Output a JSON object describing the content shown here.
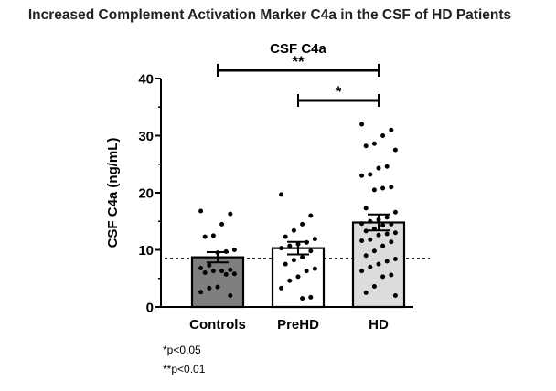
{
  "page_title": "Increased Complement Activation Marker C4a in the CSF of HD Patients",
  "footnotes": [
    "*p<0.05",
    "**p<0.01"
  ],
  "chart_data": {
    "type": "bar",
    "title": "CSF C4a",
    "xlabel": "",
    "ylabel": "CSF C4a (ng/mL)",
    "ylim": [
      0,
      40
    ],
    "yticks": [
      0,
      10,
      20,
      30,
      40
    ],
    "categories": [
      "Controls",
      "PreHD",
      "HD"
    ],
    "values": [
      8.7,
      10.3,
      14.8
    ],
    "error_sem": [
      0.9,
      1.1,
      1.4
    ],
    "bar_colors": [
      "#7f7f7f",
      "#ffffff",
      "#dcdcdc"
    ],
    "reference_line": 8.5,
    "points": [
      [
        16.8,
        16.3,
        14.5,
        12.5,
        12.3,
        10.0,
        9.7,
        9.5,
        7.3,
        6.8,
        6.5,
        6.3,
        6.3,
        6.0,
        5.8,
        5.7,
        3.5,
        3.3,
        2.6,
        2.0
      ],
      [
        19.7,
        16.0,
        14.5,
        13.4,
        12.3,
        11.9,
        11.3,
        11.0,
        10.7,
        10.3,
        9.8,
        8.7,
        8.2,
        7.5,
        6.7,
        6.3,
        5.3,
        4.6,
        3.3,
        1.7,
        1.5
      ],
      [
        32.0,
        31.0,
        30.0,
        28.6,
        28.2,
        27.5,
        24.6,
        24.3,
        23.2,
        23.0,
        21.0,
        20.8,
        20.5,
        17.3,
        16.6,
        15.7,
        15.3,
        15.0,
        14.6,
        14.5,
        14.3,
        13.7,
        13.3,
        13.0,
        12.8,
        12.6,
        11.8,
        11.6,
        11.4,
        10.7,
        9.8,
        9.0,
        8.4,
        8.0,
        7.5,
        7.0,
        6.3,
        5.6,
        5.3,
        3.6,
        2.5,
        2.0
      ]
    ],
    "significance": [
      {
        "from": 0,
        "to": 2,
        "label": "**"
      },
      {
        "from": 1,
        "to": 2,
        "label": "*"
      }
    ]
  }
}
